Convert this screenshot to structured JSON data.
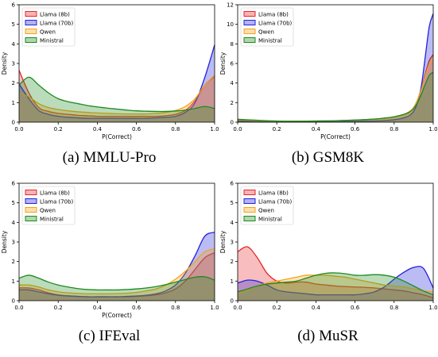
{
  "colors": {
    "Llama (8b)": "#e8262a",
    "Llama (70b)": "#2222dd",
    "Qwen": "#f5a21a",
    "Ministral": "#1e8a1e"
  },
  "chart_data": [
    {
      "type": "area",
      "caption": "(a)  MMLU-Pro",
      "xlabel": "P(Correct)",
      "ylabel": "Density",
      "xlim": [
        0,
        1
      ],
      "ylim": [
        0,
        6
      ],
      "xticks": [
        "0.0",
        "0.2",
        "0.4",
        "0.6",
        "0.8",
        "1.0"
      ],
      "yticks": [
        "0",
        "1",
        "2",
        "3",
        "4",
        "5",
        "6"
      ],
      "grid": false,
      "legend": "top-left",
      "x": [
        0,
        0.05,
        0.1,
        0.15,
        0.2,
        0.25,
        0.3,
        0.35,
        0.4,
        0.45,
        0.5,
        0.55,
        0.6,
        0.65,
        0.7,
        0.75,
        0.8,
        0.85,
        0.9,
        0.95,
        1.0
      ],
      "series": [
        {
          "name": "Llama (8b)",
          "values": [
            2.65,
            1.5,
            0.75,
            0.55,
            0.45,
            0.4,
            0.35,
            0.33,
            0.3,
            0.3,
            0.3,
            0.3,
            0.3,
            0.3,
            0.3,
            0.33,
            0.4,
            0.6,
            1.1,
            1.9,
            2.35
          ]
        },
        {
          "name": "Llama (70b)",
          "values": [
            1.95,
            1.2,
            0.6,
            0.4,
            0.3,
            0.25,
            0.22,
            0.2,
            0.2,
            0.2,
            0.2,
            0.2,
            0.2,
            0.2,
            0.22,
            0.25,
            0.3,
            0.5,
            1.0,
            2.3,
            3.95
          ]
        },
        {
          "name": "Qwen",
          "values": [
            1.5,
            1.3,
            0.95,
            0.75,
            0.65,
            0.58,
            0.53,
            0.5,
            0.47,
            0.45,
            0.43,
            0.42,
            0.42,
            0.42,
            0.45,
            0.5,
            0.6,
            0.8,
            1.2,
            1.9,
            2.4
          ]
        },
        {
          "name": "Ministral",
          "values": [
            1.9,
            2.3,
            1.9,
            1.5,
            1.2,
            1.05,
            0.95,
            0.85,
            0.78,
            0.72,
            0.67,
            0.62,
            0.58,
            0.56,
            0.55,
            0.55,
            0.57,
            0.62,
            0.7,
            0.8,
            0.7
          ]
        }
      ]
    },
    {
      "type": "area",
      "caption": "(b)  GSM8K",
      "xlabel": "P(Correct)",
      "ylabel": "Density",
      "xlim": [
        0,
        1
      ],
      "ylim": [
        0,
        12
      ],
      "xticks": [
        "0.0",
        "0.2",
        "0.4",
        "0.6",
        "0.8",
        "1.0"
      ],
      "yticks": [
        "0",
        "2",
        "4",
        "6",
        "8",
        "10",
        "12"
      ],
      "grid": false,
      "legend": "top-left",
      "x": [
        0,
        0.1,
        0.2,
        0.3,
        0.4,
        0.5,
        0.6,
        0.7,
        0.75,
        0.8,
        0.85,
        0.88,
        0.9,
        0.92,
        0.94,
        0.96,
        0.98,
        1.0
      ],
      "series": [
        {
          "name": "Llama (8b)",
          "values": [
            0.15,
            0.1,
            0.07,
            0.08,
            0.1,
            0.14,
            0.2,
            0.3,
            0.4,
            0.55,
            0.8,
            1.1,
            1.5,
            2.3,
            3.5,
            5.0,
            6.3,
            6.9
          ]
        },
        {
          "name": "Llama (70b)",
          "values": [
            0.1,
            0.05,
            0.03,
            0.03,
            0.04,
            0.05,
            0.08,
            0.12,
            0.17,
            0.25,
            0.45,
            0.7,
            1.1,
            2.0,
            3.8,
            6.8,
            9.8,
            11.1
          ]
        },
        {
          "name": "Qwen",
          "values": [
            0.25,
            0.15,
            0.1,
            0.1,
            0.12,
            0.15,
            0.2,
            0.3,
            0.4,
            0.55,
            0.8,
            1.1,
            1.5,
            2.3,
            3.4,
            4.8,
            6.0,
            6.7
          ]
        },
        {
          "name": "Ministral",
          "values": [
            0.3,
            0.2,
            0.12,
            0.1,
            0.12,
            0.15,
            0.22,
            0.32,
            0.42,
            0.55,
            0.8,
            1.05,
            1.4,
            2.0,
            2.9,
            3.9,
            4.8,
            5.1
          ]
        }
      ]
    },
    {
      "type": "area",
      "caption": "(c)  IFEval",
      "xlabel": "P(Correct)",
      "ylabel": "Density",
      "xlim": [
        0,
        1
      ],
      "ylim": [
        0,
        6
      ],
      "xticks": [
        "0.0",
        "0.2",
        "0.4",
        "0.6",
        "0.8",
        "1.0"
      ],
      "yticks": [
        "0",
        "1",
        "2",
        "3",
        "4",
        "5",
        "6"
      ],
      "grid": false,
      "legend": "top-left",
      "x": [
        0,
        0.05,
        0.1,
        0.15,
        0.2,
        0.25,
        0.3,
        0.35,
        0.4,
        0.45,
        0.5,
        0.55,
        0.6,
        0.65,
        0.7,
        0.75,
        0.8,
        0.85,
        0.9,
        0.95,
        1.0
      ],
      "series": [
        {
          "name": "Llama (8b)",
          "values": [
            0.65,
            0.65,
            0.55,
            0.4,
            0.3,
            0.25,
            0.22,
            0.2,
            0.2,
            0.2,
            0.2,
            0.2,
            0.22,
            0.25,
            0.3,
            0.4,
            0.6,
            1.0,
            1.6,
            2.2,
            2.45
          ]
        },
        {
          "name": "Llama (70b)",
          "values": [
            0.55,
            0.55,
            0.45,
            0.35,
            0.28,
            0.24,
            0.22,
            0.2,
            0.2,
            0.2,
            0.2,
            0.22,
            0.24,
            0.28,
            0.35,
            0.5,
            0.8,
            1.4,
            2.3,
            3.3,
            3.5
          ]
        },
        {
          "name": "Qwen",
          "values": [
            0.8,
            0.8,
            0.7,
            0.55,
            0.45,
            0.4,
            0.37,
            0.35,
            0.35,
            0.35,
            0.36,
            0.38,
            0.42,
            0.5,
            0.6,
            0.8,
            1.1,
            1.5,
            2.0,
            2.5,
            2.65
          ]
        },
        {
          "name": "Ministral",
          "values": [
            1.15,
            1.3,
            1.15,
            0.95,
            0.8,
            0.7,
            0.62,
            0.57,
            0.55,
            0.55,
            0.55,
            0.57,
            0.6,
            0.65,
            0.72,
            0.82,
            0.95,
            1.08,
            1.2,
            1.22,
            1.05
          ]
        }
      ]
    },
    {
      "type": "area",
      "caption": "(d)  MuSR",
      "xlabel": "",
      "ylabel": "Density",
      "xlim": [
        0,
        1
      ],
      "ylim": [
        0,
        6
      ],
      "xticks": [
        "0.0",
        "0.2",
        "0.4",
        "0.6",
        "0.8",
        "1.0"
      ],
      "yticks": [
        "0",
        "1",
        "2",
        "3",
        "4",
        "5",
        "6"
      ],
      "grid": false,
      "legend": "top-left",
      "x": [
        0,
        0.05,
        0.1,
        0.15,
        0.2,
        0.25,
        0.3,
        0.35,
        0.4,
        0.45,
        0.5,
        0.55,
        0.6,
        0.65,
        0.7,
        0.75,
        0.8,
        0.85,
        0.9,
        0.95,
        1.0
      ],
      "series": [
        {
          "name": "Llama (8b)",
          "values": [
            2.5,
            2.75,
            2.2,
            1.4,
            1.0,
            0.9,
            0.95,
            0.95,
            0.85,
            0.8,
            0.75,
            0.72,
            0.7,
            0.68,
            0.65,
            0.6,
            0.55,
            0.5,
            0.4,
            0.3,
            0.15
          ]
        },
        {
          "name": "Llama (70b)",
          "values": [
            0.9,
            1.05,
            1.0,
            0.8,
            0.55,
            0.45,
            0.4,
            0.35,
            0.3,
            0.3,
            0.3,
            0.3,
            0.3,
            0.35,
            0.45,
            0.7,
            1.1,
            1.45,
            1.7,
            1.65,
            0.65
          ]
        },
        {
          "name": "Qwen",
          "values": [
            0.35,
            0.55,
            0.75,
            0.9,
            1.0,
            1.1,
            1.2,
            1.3,
            1.3,
            1.3,
            1.25,
            1.2,
            1.1,
            1.0,
            0.9,
            0.8,
            0.75,
            0.7,
            0.6,
            0.5,
            0.45
          ]
        },
        {
          "name": "Ministral",
          "values": [
            0.45,
            0.6,
            0.75,
            0.85,
            0.9,
            0.95,
            1.0,
            1.15,
            1.3,
            1.4,
            1.42,
            1.38,
            1.3,
            1.3,
            1.33,
            1.3,
            1.2,
            1.0,
            0.75,
            0.5,
            0.3
          ]
        }
      ]
    }
  ]
}
